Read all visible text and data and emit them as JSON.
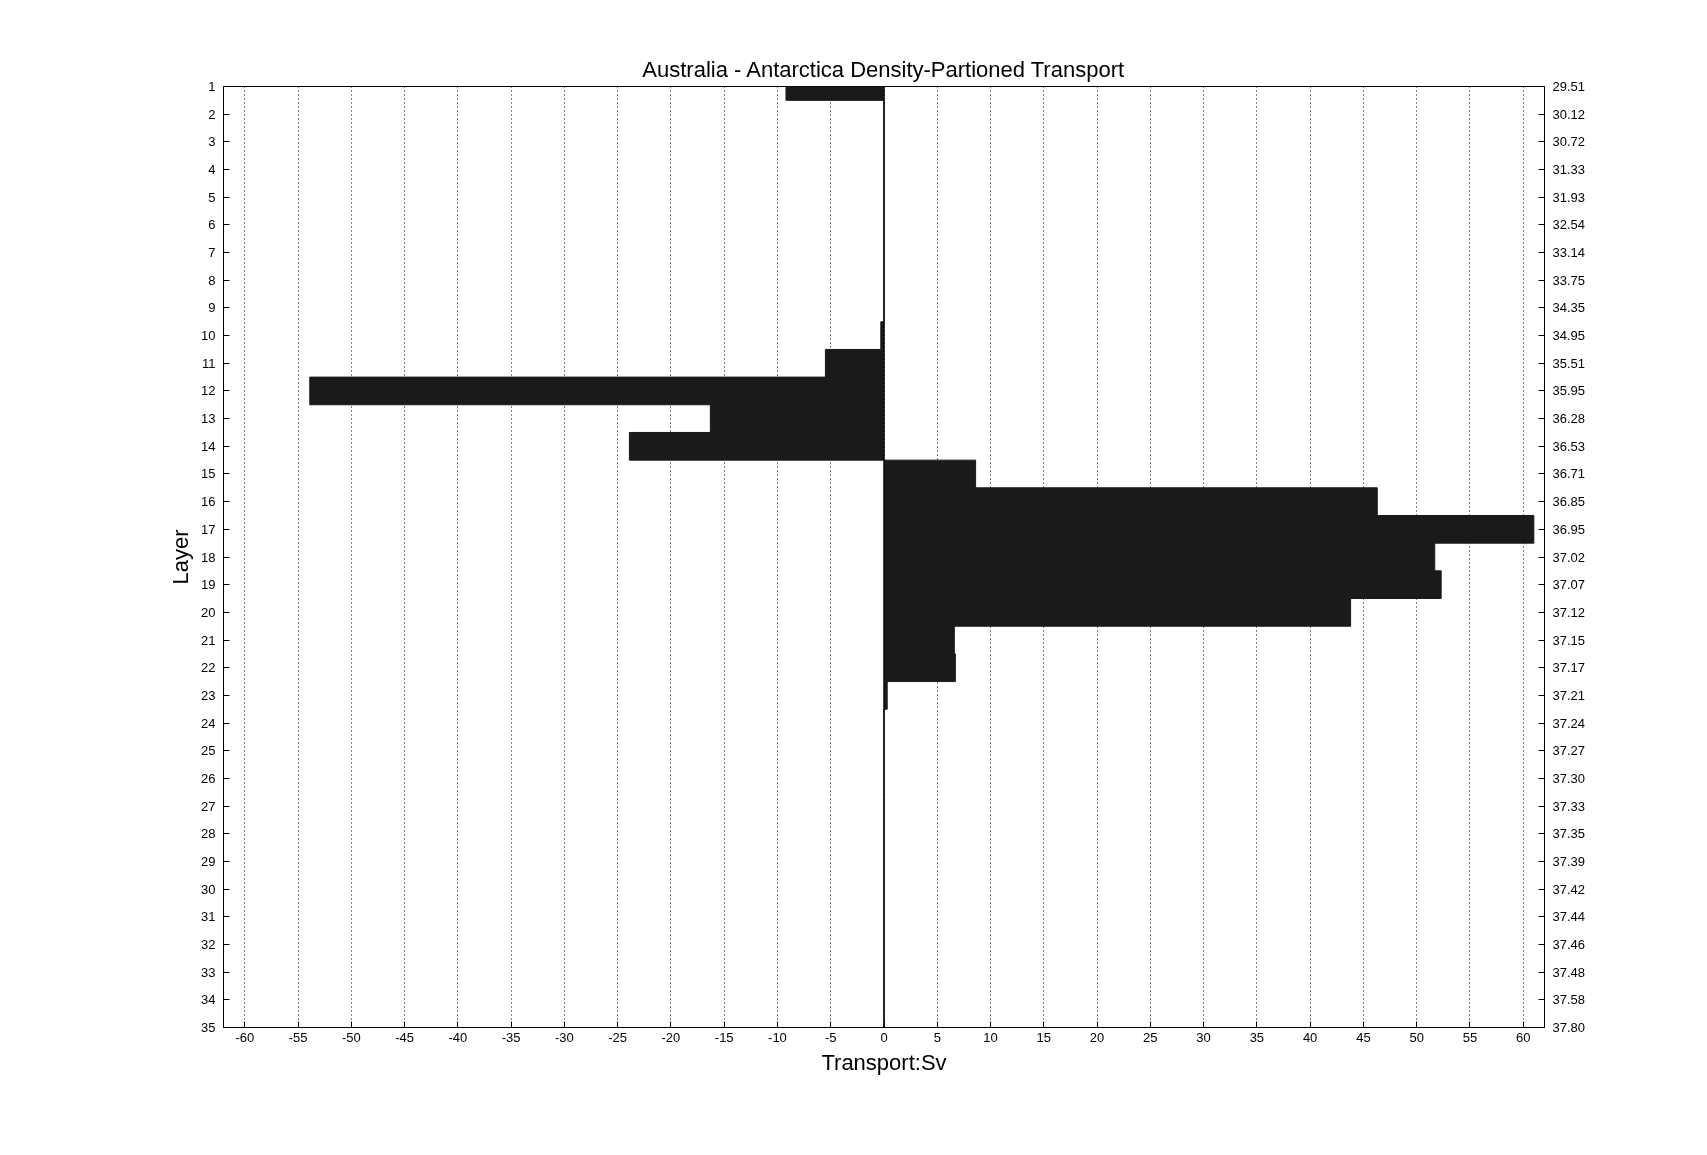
{
  "chart_data": {
    "type": "bar",
    "orientation": "horizontal",
    "title": "Australia - Antarctica Density-Partioned Transport",
    "xlabel": "Transport:Sv",
    "ylabel": "Layer",
    "categories": [
      "1",
      "2",
      "3",
      "4",
      "5",
      "6",
      "7",
      "8",
      "9",
      "10",
      "11",
      "12",
      "13",
      "14",
      "15",
      "16",
      "17",
      "18",
      "19",
      "20",
      "21",
      "22",
      "23",
      "24",
      "25",
      "26",
      "27",
      "28",
      "29",
      "30",
      "31",
      "32",
      "33",
      "34",
      "35"
    ],
    "y2_categories": [
      "29.51",
      "30.12",
      "30.72",
      "31.33",
      "31.93",
      "32.54",
      "33.14",
      "33.75",
      "34.35",
      "34.95",
      "35.51",
      "35.95",
      "36.28",
      "36.53",
      "36.71",
      "36.85",
      "36.95",
      "37.02",
      "37.07",
      "37.12",
      "37.15",
      "37.17",
      "37.21",
      "37.24",
      "37.27",
      "37.30",
      "37.33",
      "37.35",
      "37.39",
      "37.42",
      "37.44",
      "37.46",
      "37.48",
      "37.58",
      "37.80"
    ],
    "values": [
      -9.2,
      0,
      0,
      0,
      0,
      0,
      0,
      0,
      0,
      -0.3,
      -5.5,
      -53.9,
      -16.3,
      -23.9,
      8.6,
      46.3,
      61.0,
      51.7,
      52.3,
      43.8,
      6.6,
      6.7,
      0.3,
      0,
      0,
      0,
      0,
      0,
      0,
      0,
      0,
      0,
      0,
      0,
      0
    ],
    "color": "#1a1a1a",
    "xlim": [
      -62,
      62
    ],
    "xticks": [
      -60,
      -55,
      -50,
      -45,
      -40,
      -35,
      -30,
      -25,
      -20,
      -15,
      -10,
      -5,
      0,
      5,
      10,
      15,
      20,
      25,
      30,
      35,
      40,
      45,
      50,
      55,
      60
    ],
    "grid": "x",
    "ref_lines": [
      {
        "axis": "x",
        "value": 0
      }
    ]
  }
}
